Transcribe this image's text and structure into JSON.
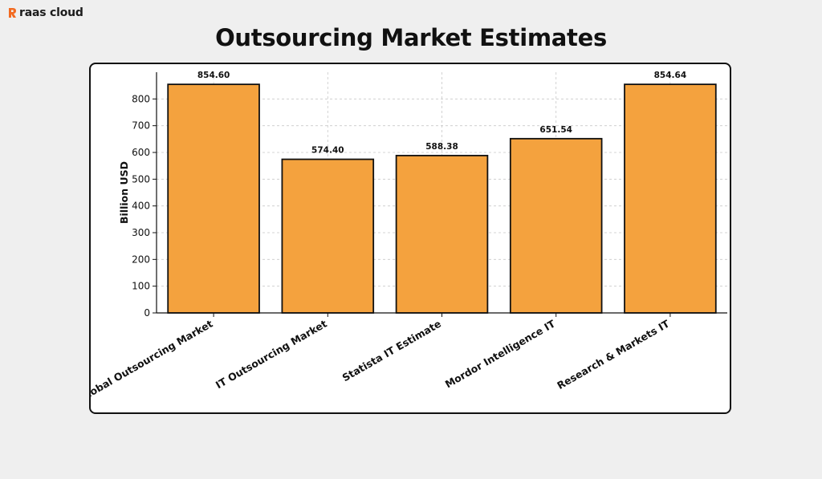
{
  "brand": {
    "name": "raas cloud",
    "accent_color": "#f26a21"
  },
  "chart_data": {
    "type": "bar",
    "title": "Outsourcing Market Estimates",
    "xlabel": "",
    "ylabel": "Billion USD",
    "categories": [
      "Global Outsourcing Market",
      "IT Outsourcing Market",
      "Statista IT Estimate",
      "Mordor Intelligence IT",
      "Research & Markets IT"
    ],
    "values": [
      854.6,
      574.4,
      588.38,
      651.54,
      854.64
    ],
    "data_labels": [
      "854.60",
      "574.40",
      "588.38",
      "651.54",
      "854.64"
    ],
    "yticks": [
      0,
      100,
      200,
      300,
      400,
      500,
      600,
      700,
      800
    ],
    "ylim": [
      0,
      900
    ],
    "grid": true,
    "bar_color": "#f4a23e",
    "bar_edge_color": "#111111"
  }
}
